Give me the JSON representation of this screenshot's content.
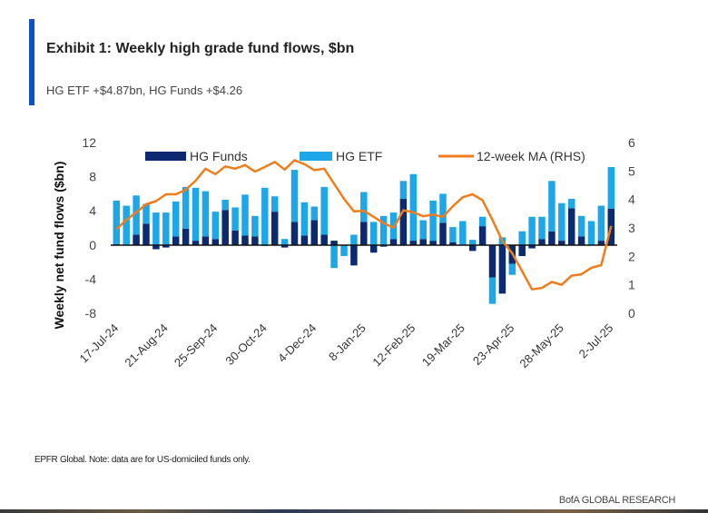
{
  "header": {
    "title": "Exhibit 1: Weekly high grade fund flows, $bn",
    "subtitle": "HG ETF +$4.87bn, HG Funds +$4.26"
  },
  "footer": {
    "source": "EPFR Global. Note: data are for US-domiciled funds only.",
    "brand": "BofA GLOBAL RESEARCH"
  },
  "colors": {
    "hg_funds": "#0b2a6f",
    "hg_etf": "#1ea7e8",
    "ma": "#f07d1a",
    "accent": "#0a52c9"
  },
  "chart_data": {
    "type": "bar+line",
    "title": "Exhibit 1: Weekly high grade fund flows, $bn",
    "ylabel": "Weekly net fund flows ($bn)",
    "ylim": [
      -8,
      12
    ],
    "yticks": [
      12,
      8,
      4,
      0,
      -4,
      -8
    ],
    "y2lim": [
      0,
      6
    ],
    "y2ticks": [
      6,
      5,
      4,
      3,
      2,
      1,
      0
    ],
    "legend_position": "top",
    "grid": false,
    "xtick_labels": [
      "17-Jul-24",
      "21-Aug-24",
      "25-Sep-24",
      "30-Oct-24",
      "4-Dec-24",
      "8-Jan-25",
      "12-Feb-25",
      "19-Mar-25",
      "23-Apr-25",
      "28-May-25",
      "2-Jul-25"
    ],
    "x_first": "17-Jul-24",
    "x_last": "2-Jul-25",
    "x_frequency": "weekly",
    "series": [
      {
        "name": "HG Funds",
        "kind": "stacked-bar",
        "axis": "left",
        "values": [
          0.1,
          0,
          1.2,
          2.5,
          -0.5,
          -0.3,
          1.0,
          1.9,
          0.5,
          1.0,
          0.7,
          4.1,
          1.7,
          1.1,
          1.0,
          -0.1,
          3.9,
          -0.3,
          2.7,
          1.1,
          2.9,
          1.2,
          0.5,
          0,
          -2.4,
          2.7,
          -0.9,
          -0.2,
          0.7,
          5.4,
          0.5,
          0.7,
          0.5,
          2.6,
          0.3,
          0,
          -0.7,
          2.2,
          -3.8,
          -5.7,
          -2.2,
          -1.3,
          -0.4,
          0.7,
          1.6,
          0.5,
          4.3,
          1.0,
          0,
          0.5,
          4.26
        ]
      },
      {
        "name": "HG ETF",
        "kind": "stacked-bar",
        "axis": "left",
        "values": [
          5.1,
          4.6,
          4.6,
          2.3,
          3.8,
          3.8,
          4.1,
          4.9,
          6.2,
          5.3,
          3.2,
          1.2,
          2.7,
          4.8,
          2.4,
          6.7,
          1.8,
          0.7,
          6.1,
          3.9,
          1.6,
          5.6,
          -2.7,
          -1.3,
          1.2,
          3.5,
          2.7,
          3.4,
          3.1,
          2.1,
          7.8,
          2.2,
          4.7,
          3.4,
          1.8,
          2.8,
          0.6,
          1.1,
          -3.1,
          0.9,
          -1.3,
          1.6,
          3.3,
          2.6,
          5.9,
          4.4,
          1.1,
          2.4,
          2.8,
          4.1,
          4.87
        ]
      },
      {
        "name": "12-week MA (RHS)",
        "kind": "line",
        "axis": "right",
        "values": [
          2.96,
          3.28,
          3.55,
          3.83,
          3.94,
          4.18,
          4.18,
          4.34,
          4.66,
          5.08,
          4.89,
          5.16,
          5.08,
          5.21,
          4.98,
          5.14,
          5.32,
          5.05,
          5.38,
          5.24,
          5.03,
          5.08,
          4.55,
          4.02,
          3.58,
          3.6,
          3.39,
          3.17,
          3.01,
          3.62,
          3.55,
          3.41,
          3.47,
          3.39,
          3.76,
          4.08,
          4.18,
          3.97,
          3.28,
          2.54,
          2.11,
          1.48,
          0.84,
          0.89,
          1.1,
          1.0,
          1.32,
          1.37,
          1.6,
          1.69,
          3.07
        ]
      }
    ]
  }
}
